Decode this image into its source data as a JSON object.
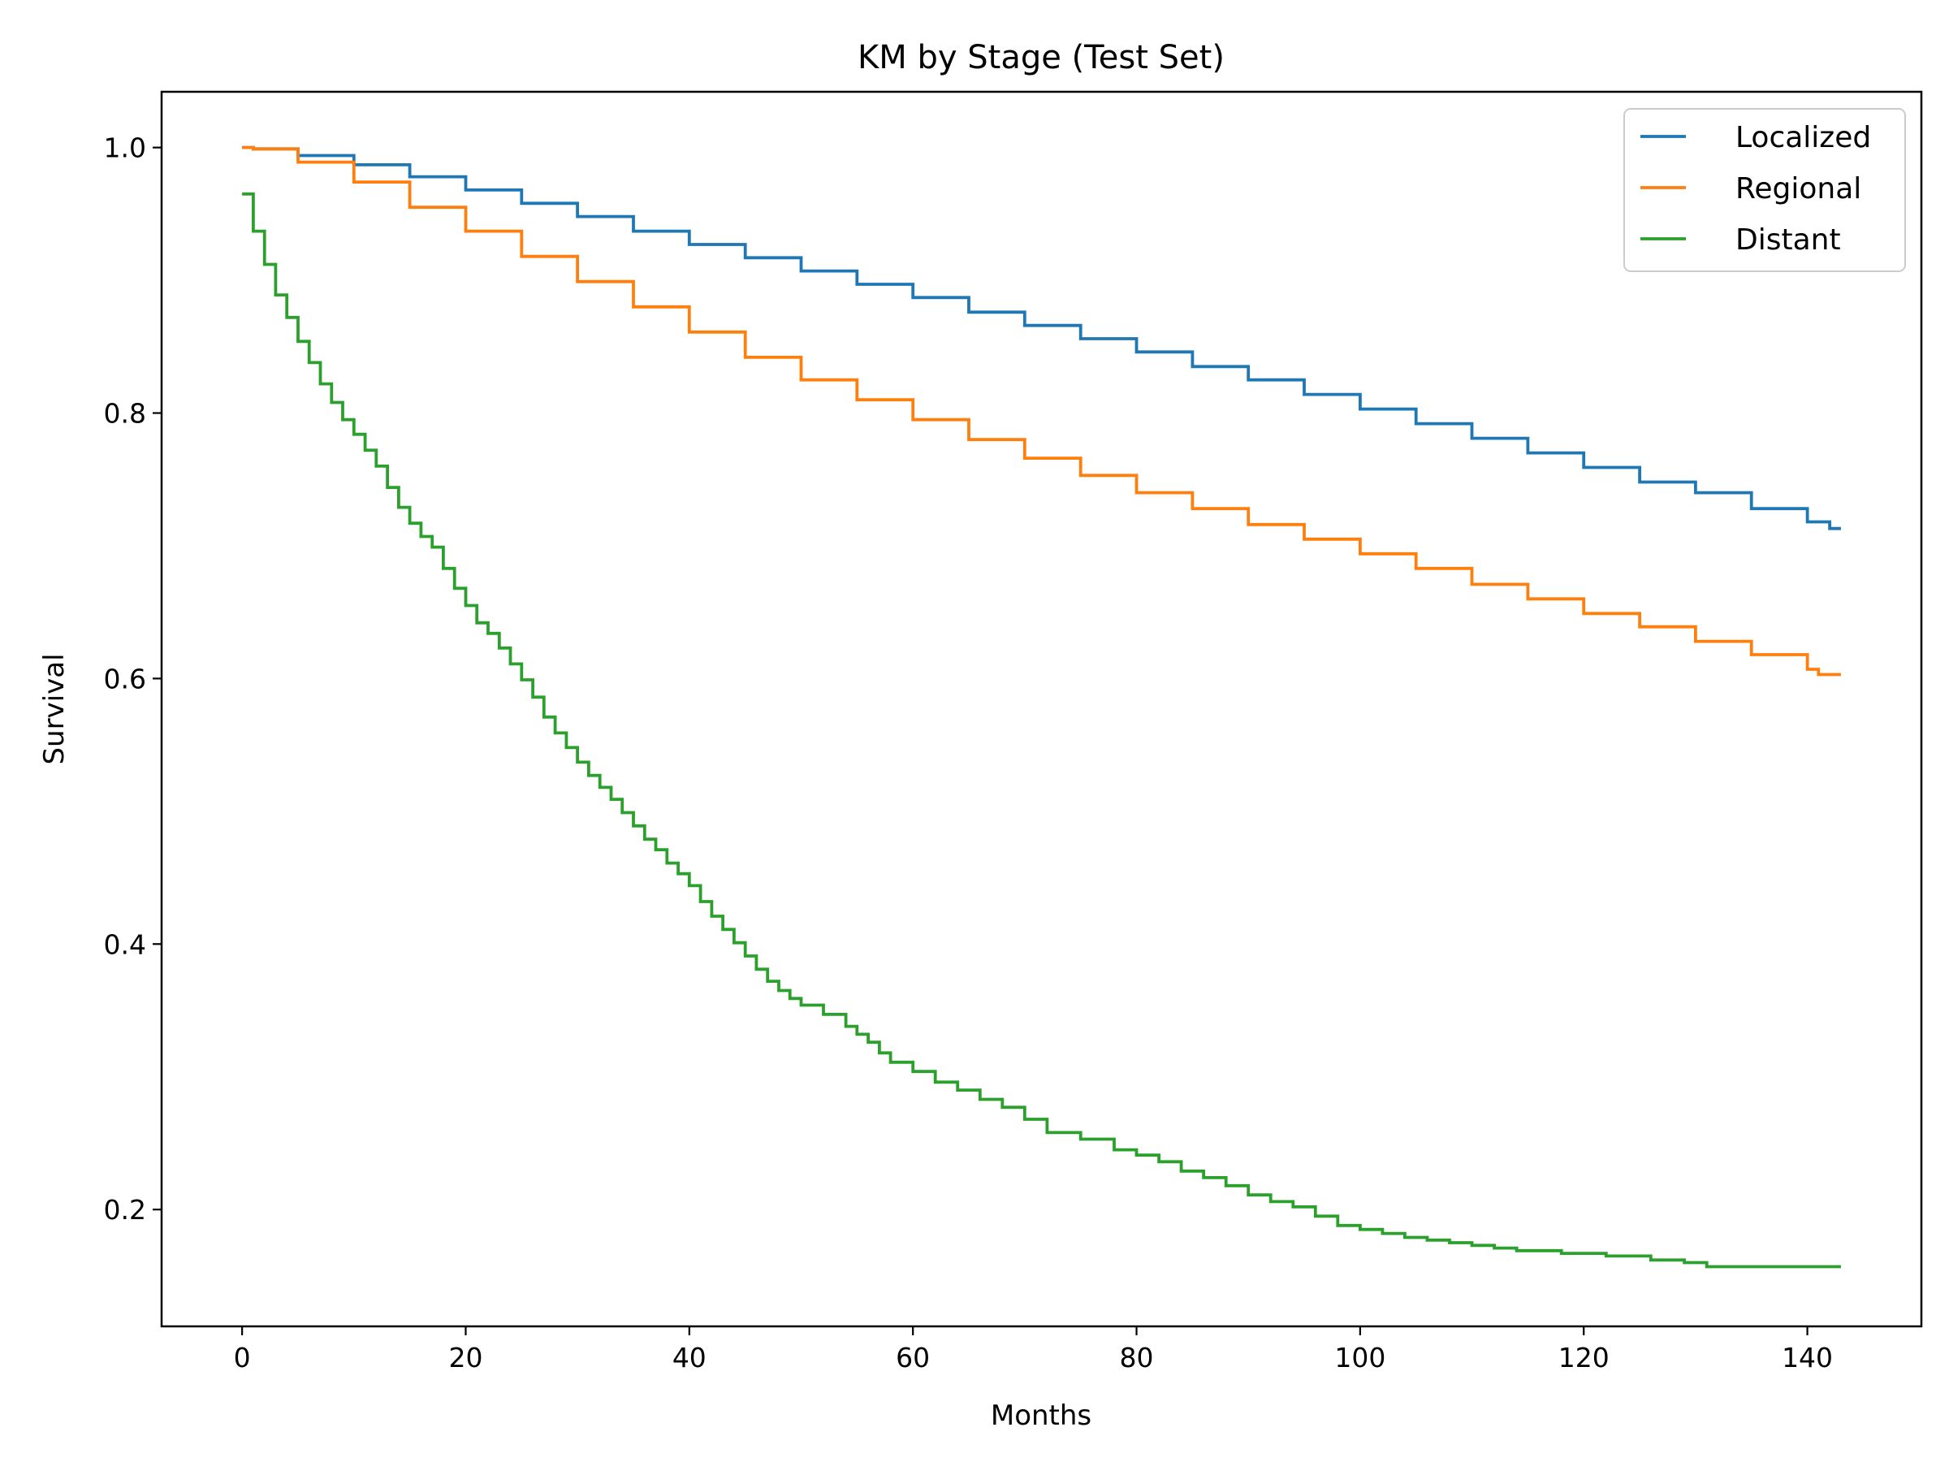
{
  "chart_data": {
    "type": "line",
    "step": true,
    "title": "KM by Stage (Test Set)",
    "xlabel": "Months",
    "ylabel": "Survival",
    "xlim": [
      -7.2,
      150.2
    ],
    "ylim": [
      0.112,
      1.042
    ],
    "xticks": [
      0,
      20,
      40,
      60,
      80,
      100,
      120,
      140
    ],
    "yticks": [
      0.2,
      0.4,
      0.6,
      0.8,
      1.0
    ],
    "ytick_labels": [
      "0.2",
      "0.4",
      "0.6",
      "0.8",
      "1.0"
    ],
    "grid": false,
    "legend_position": "top-right",
    "series": [
      {
        "name": "Localized",
        "color": "#1f77b4",
        "x": [
          0,
          1,
          5,
          10,
          15,
          20,
          25,
          30,
          35,
          40,
          45,
          50,
          55,
          60,
          65,
          70,
          75,
          80,
          85,
          90,
          95,
          100,
          105,
          110,
          115,
          120,
          125,
          130,
          135,
          140,
          142,
          143
        ],
        "y": [
          1.0,
          0.999,
          0.994,
          0.987,
          0.978,
          0.968,
          0.958,
          0.948,
          0.937,
          0.927,
          0.917,
          0.907,
          0.897,
          0.887,
          0.876,
          0.866,
          0.856,
          0.846,
          0.835,
          0.825,
          0.814,
          0.803,
          0.792,
          0.781,
          0.77,
          0.759,
          0.748,
          0.74,
          0.728,
          0.718,
          0.713,
          0.713
        ]
      },
      {
        "name": "Regional",
        "color": "#ff7f0e",
        "x": [
          0,
          1,
          5,
          10,
          15,
          20,
          25,
          30,
          35,
          40,
          45,
          50,
          55,
          60,
          65,
          70,
          75,
          80,
          85,
          90,
          95,
          100,
          105,
          110,
          115,
          120,
          125,
          130,
          135,
          140,
          141,
          143
        ],
        "y": [
          1.0,
          0.999,
          0.989,
          0.974,
          0.955,
          0.937,
          0.918,
          0.899,
          0.88,
          0.861,
          0.842,
          0.825,
          0.81,
          0.795,
          0.78,
          0.766,
          0.753,
          0.74,
          0.728,
          0.716,
          0.705,
          0.694,
          0.683,
          0.671,
          0.66,
          0.649,
          0.639,
          0.628,
          0.618,
          0.607,
          0.603,
          0.603
        ]
      },
      {
        "name": "Distant",
        "color": "#2ca02c",
        "x": [
          0,
          1,
          2,
          3,
          4,
          5,
          6,
          7,
          8,
          9,
          10,
          11,
          12,
          13,
          14,
          15,
          16,
          17,
          18,
          19,
          20,
          21,
          22,
          23,
          24,
          25,
          26,
          27,
          28,
          29,
          30,
          31,
          32,
          33,
          34,
          35,
          36,
          37,
          38,
          39,
          40,
          41,
          42,
          43,
          44,
          45,
          46,
          47,
          48,
          49,
          50,
          52,
          54,
          55,
          56,
          57,
          58,
          60,
          62,
          64,
          66,
          68,
          70,
          72,
          75,
          78,
          80,
          82,
          84,
          86,
          88,
          90,
          92,
          94,
          96,
          98,
          100,
          102,
          104,
          106,
          108,
          110,
          112,
          114,
          118,
          122,
          126,
          129,
          131,
          143
        ],
        "y": [
          0.965,
          0.937,
          0.912,
          0.889,
          0.872,
          0.854,
          0.838,
          0.822,
          0.808,
          0.795,
          0.784,
          0.772,
          0.76,
          0.744,
          0.729,
          0.717,
          0.707,
          0.699,
          0.683,
          0.668,
          0.655,
          0.642,
          0.634,
          0.623,
          0.611,
          0.599,
          0.586,
          0.571,
          0.559,
          0.548,
          0.537,
          0.527,
          0.518,
          0.509,
          0.499,
          0.489,
          0.479,
          0.471,
          0.461,
          0.453,
          0.444,
          0.432,
          0.421,
          0.411,
          0.401,
          0.391,
          0.381,
          0.372,
          0.365,
          0.359,
          0.354,
          0.347,
          0.338,
          0.332,
          0.326,
          0.318,
          0.311,
          0.304,
          0.296,
          0.29,
          0.283,
          0.277,
          0.268,
          0.258,
          0.253,
          0.245,
          0.241,
          0.236,
          0.229,
          0.224,
          0.218,
          0.211,
          0.206,
          0.202,
          0.195,
          0.188,
          0.185,
          0.182,
          0.179,
          0.177,
          0.175,
          0.173,
          0.171,
          0.169,
          0.167,
          0.165,
          0.162,
          0.16,
          0.157,
          0.157
        ]
      }
    ]
  }
}
